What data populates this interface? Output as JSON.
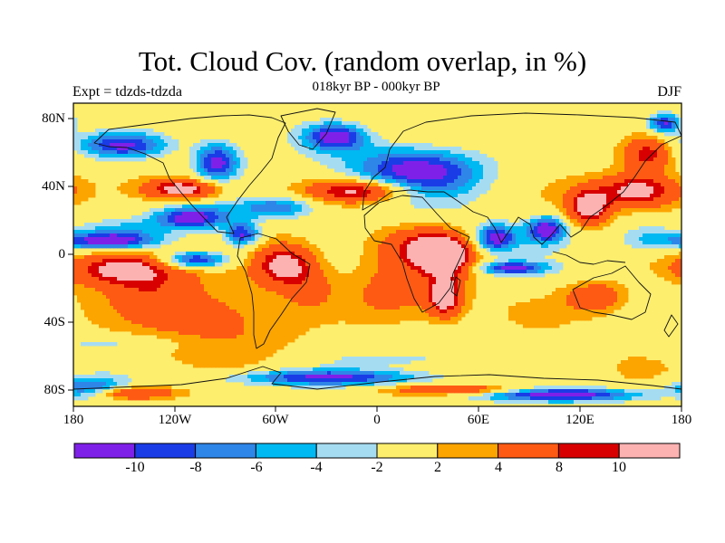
{
  "header": {
    "title": "Tot. Cloud Cov. (random overlap, in %)",
    "subtitle": "018kyr BP - 000kyr BP",
    "left_label": "Expt = tdzds-tdzda",
    "right_label": "DJF"
  },
  "axes": {
    "lat_labels": [
      "80N",
      "40N",
      "0",
      "40S",
      "80S"
    ],
    "lon_labels": [
      "180",
      "120W",
      "60W",
      "0",
      "60E",
      "120E",
      "180"
    ]
  },
  "colorbar": {
    "labels": [
      "-10",
      "-8",
      "-6",
      "-4",
      "-2",
      "2",
      "4",
      "8",
      "10"
    ],
    "colors": [
      "#7f20e8",
      "#1a3ce6",
      "#2e86e8",
      "#00b8f2",
      "#a6dcf2",
      "#fdee6e",
      "#fca400",
      "#fe5a14",
      "#d80000",
      "#fdb2b2"
    ]
  },
  "chart_data": {
    "type": "heatmap",
    "title": "Tot. Cloud Cov. (random overlap, in %)",
    "subtitle": "018kyr BP - 000kyr BP",
    "variable": "Total cloud cover difference (%)",
    "season": "DJF",
    "levels": [
      -10,
      -8,
      -6,
      -4,
      -2,
      2,
      4,
      8,
      10
    ],
    "xlim": [
      -180,
      180
    ],
    "ylim": [
      -90,
      90
    ],
    "features": [
      {
        "lon": -150,
        "lat": 65,
        "rx": 28,
        "ry": 8,
        "value": -11
      },
      {
        "lon": -160,
        "lat": 8,
        "rx": 30,
        "ry": 5,
        "value": -11
      },
      {
        "lon": -110,
        "lat": 22,
        "rx": 22,
        "ry": 7,
        "value": -12
      },
      {
        "lon": -95,
        "lat": 55,
        "rx": 14,
        "ry": 12,
        "value": -12
      },
      {
        "lon": -80,
        "lat": 12,
        "rx": 10,
        "ry": 7,
        "value": -11
      },
      {
        "lon": -108,
        "lat": -3,
        "rx": 20,
        "ry": 5,
        "value": -12
      },
      {
        "lon": -60,
        "lat": 28,
        "rx": 25,
        "ry": 7,
        "value": -9
      },
      {
        "lon": -25,
        "lat": 70,
        "rx": 18,
        "ry": 8,
        "value": -11
      },
      {
        "lon": 25,
        "lat": 50,
        "rx": 40,
        "ry": 15,
        "value": -12
      },
      {
        "lon": 70,
        "lat": 10,
        "rx": 12,
        "ry": 8,
        "value": -12
      },
      {
        "lon": 80,
        "lat": -8,
        "rx": 20,
        "ry": 4,
        "value": -11
      },
      {
        "lon": 100,
        "lat": 15,
        "rx": 12,
        "ry": 8,
        "value": -12
      },
      {
        "lon": 170,
        "lat": 78,
        "rx": 10,
        "ry": 6,
        "value": -11
      },
      {
        "lon": -30,
        "lat": -73,
        "rx": 60,
        "ry": 5,
        "value": -11
      },
      {
        "lon": 110,
        "lat": -83,
        "rx": 50,
        "ry": 4,
        "value": -12
      },
      {
        "lon": -170,
        "lat": -80,
        "rx": 20,
        "ry": 6,
        "value": -11
      },
      {
        "lon": -150,
        "lat": 15,
        "rx": 25,
        "ry": 7,
        "value": -4
      },
      {
        "lon": 160,
        "lat": 10,
        "rx": 20,
        "ry": 10,
        "value": -5
      },
      {
        "lon": -135,
        "lat": -22,
        "rx": 20,
        "ry": 10,
        "value": 3
      },
      {
        "lon": -40,
        "lat": -20,
        "rx": 15,
        "ry": 12,
        "value": 4
      },
      {
        "lon": -150,
        "lat": -52,
        "rx": 40,
        "ry": 5,
        "value": -3
      },
      {
        "lon": 10,
        "lat": -62,
        "rx": 50,
        "ry": 5,
        "value": -3
      },
      {
        "lon": -100,
        "lat": -35,
        "rx": 50,
        "ry": 25,
        "value": 5
      },
      {
        "lon": 10,
        "lat": -25,
        "rx": 30,
        "ry": 20,
        "value": 5
      },
      {
        "lon": 30,
        "lat": 5,
        "rx": 25,
        "ry": 12,
        "value": 9
      },
      {
        "lon": -150,
        "lat": -8,
        "rx": 32,
        "ry": 10,
        "value": 12
      },
      {
        "lon": -115,
        "lat": 39,
        "rx": 22,
        "ry": 6,
        "value": 12
      },
      {
        "lon": -10,
        "lat": 38,
        "rx": 30,
        "ry": 7,
        "value": 12
      },
      {
        "lon": -55,
        "lat": -6,
        "rx": 18,
        "ry": 12,
        "value": 12
      },
      {
        "lon": 40,
        "lat": -2,
        "rx": 15,
        "ry": 10,
        "value": 12
      },
      {
        "lon": 40,
        "lat": -25,
        "rx": 10,
        "ry": 12,
        "value": 12
      },
      {
        "lon": 125,
        "lat": 28,
        "rx": 12,
        "ry": 10,
        "value": 12
      },
      {
        "lon": 155,
        "lat": 38,
        "rx": 25,
        "ry": 10,
        "value": 12
      },
      {
        "lon": 160,
        "lat": 60,
        "rx": 15,
        "ry": 10,
        "value": 9
      },
      {
        "lon": 130,
        "lat": -25,
        "rx": 20,
        "ry": 10,
        "value": 7
      },
      {
        "lon": -150,
        "lat": -82,
        "rx": 30,
        "ry": 4,
        "value": 11
      },
      {
        "lon": 50,
        "lat": -80,
        "rx": 40,
        "ry": 3,
        "value": 9
      }
    ]
  }
}
